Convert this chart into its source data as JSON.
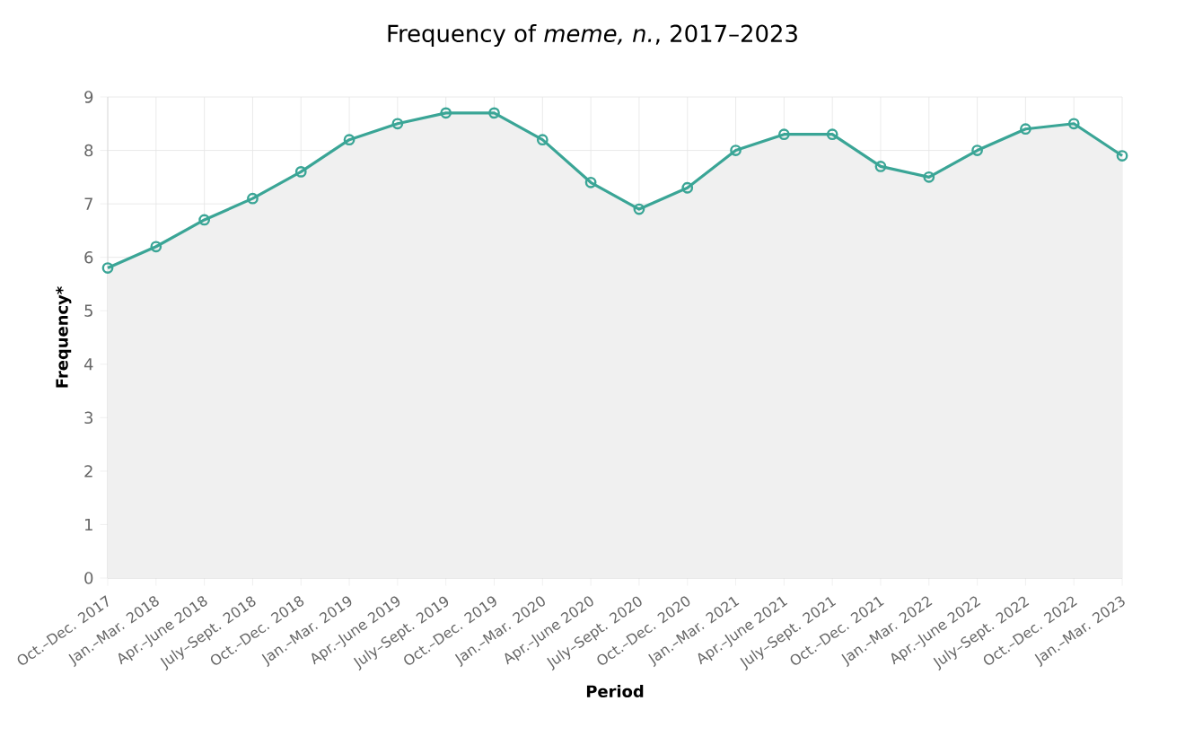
{
  "chart_data": {
    "type": "line",
    "title": "Frequency of *meme, n.*, 2017–2023",
    "xlabel": "Period",
    "ylabel": "Frequency*",
    "categories": [
      "Oct.–Dec. 2017",
      "Jan.–Mar. 2018",
      "Apr.–June 2018",
      "July–Sept. 2018",
      "Oct.–Dec. 2018",
      "Jan.–Mar. 2019",
      "Apr.–June 2019",
      "July–Sept. 2019",
      "Oct.–Dec. 2019",
      "Jan.–Mar. 2020",
      "Apr.–June 2020",
      "July–Sept. 2020",
      "Oct.–Dec. 2020",
      "Jan.–Mar. 2021",
      "Apr.–June 2021",
      "July–Sept. 2021",
      "Oct.–Dec. 2021",
      "Jan.–Mar. 2022",
      "Apr.–June 2022",
      "July–Sept. 2022",
      "Oct.–Dec. 2022",
      "Jan.–Mar. 2023"
    ],
    "series": [
      {
        "color": "#3aa596",
        "values": [
          5.8,
          6.2,
          6.7,
          7.1,
          7.6,
          8.2,
          8.5,
          8.7,
          8.7,
          8.2,
          7.4,
          6.9,
          7.3,
          8.0,
          8.3,
          8.3,
          7.7,
          7.5,
          8.0,
          8.4,
          8.5,
          7.9
        ]
      }
    ],
    "ylim": [
      0,
      9
    ],
    "yticks": [
      0,
      1,
      2,
      3,
      4,
      5,
      6,
      7,
      8,
      9
    ],
    "grid": true,
    "marker": "circle",
    "line_style": "solid"
  }
}
